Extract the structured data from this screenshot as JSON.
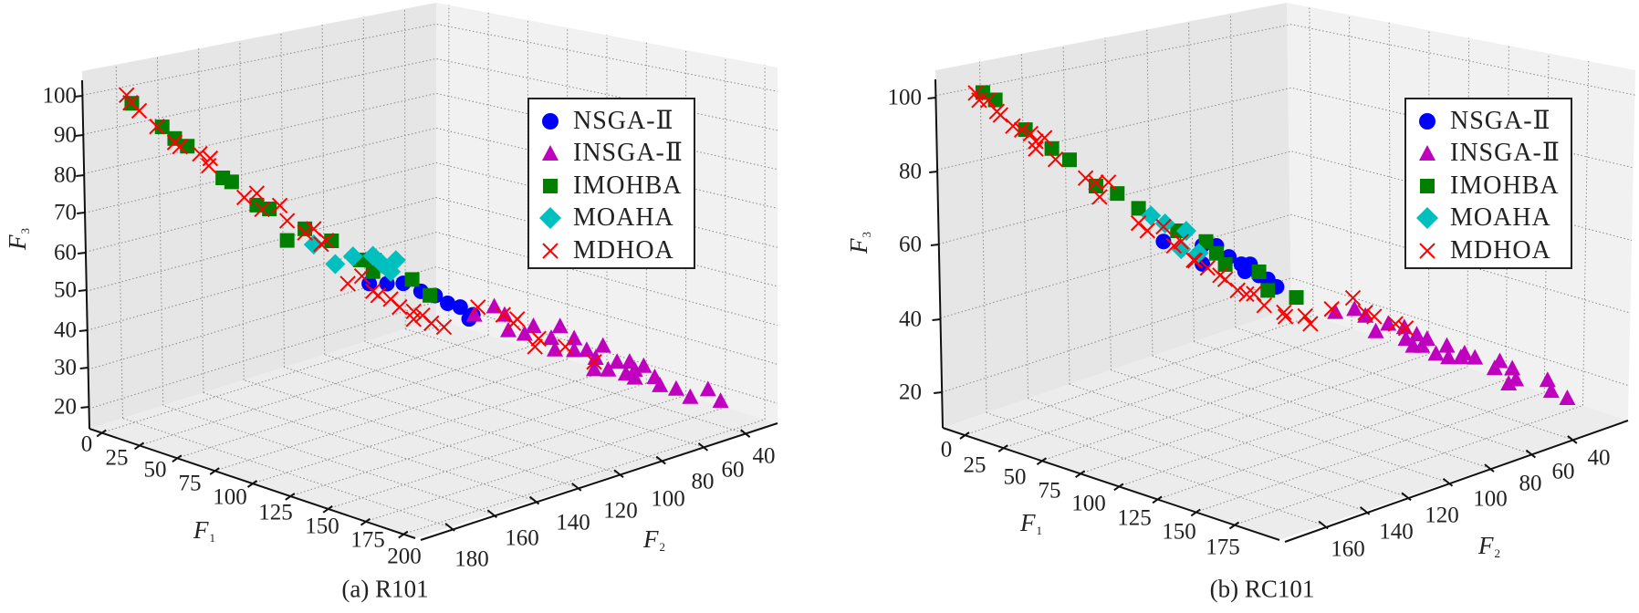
{
  "chart_data": [
    {
      "type": "scatter",
      "projection": "3d",
      "caption": "(a) R101",
      "xlabel": "F",
      "xlabel_sub": "1",
      "ylabel": "F",
      "ylabel_sub": "2",
      "zlabel": "F",
      "zlabel_sub": "3",
      "xticks": [
        "0",
        "25",
        "50",
        "75",
        "100",
        "125",
        "150",
        "175",
        "200"
      ],
      "yticks": [
        "180",
        "160",
        "140",
        "120",
        "100",
        "80",
        "60",
        "40"
      ],
      "zticks": [
        "100",
        "90",
        "80",
        "70",
        "60",
        "50",
        "40",
        "30",
        "20"
      ],
      "xlim": [
        0,
        200
      ],
      "ylim": [
        40,
        180
      ],
      "zlim": [
        20,
        100
      ],
      "grid": true,
      "legend_position": "top-right",
      "series": [
        {
          "name": "NSGA-Ⅱ",
          "marker": "circle",
          "color": "#0000ff",
          "points": [
            [
              84,
              121,
              52
            ],
            [
              90,
              117,
              52
            ],
            [
              95,
              113,
              52
            ],
            [
              101,
              109,
              50
            ],
            [
              106,
              106,
              49
            ],
            [
              110,
              103,
              47
            ],
            [
              114,
              100,
              46
            ],
            [
              118,
              97,
              44
            ],
            [
              117,
              98,
              43
            ]
          ]
        },
        {
          "name": "INSGA-Ⅱ",
          "marker": "triangle",
          "color": "#bf00bf",
          "points": [
            [
              119,
              97,
              44
            ],
            [
              125,
              92,
              46
            ],
            [
              129,
              90,
              44
            ],
            [
              130,
              89,
              40
            ],
            [
              135,
              85,
              39
            ],
            [
              138,
              83,
              41
            ],
            [
              144,
              79,
              38
            ],
            [
              147,
              77,
              41
            ],
            [
              145,
              78,
              35
            ],
            [
              152,
              74,
              38
            ],
            [
              152,
              74,
              35
            ],
            [
              156,
              71,
              35
            ],
            [
              161,
              67,
              36
            ],
            [
              159,
              69,
              33
            ],
            [
              163,
              66,
              30
            ],
            [
              166,
              64,
              32
            ],
            [
              170,
              61,
              32
            ],
            [
              172,
              60,
              30
            ],
            [
              175,
              58,
              31
            ],
            [
              172,
              60,
              28
            ],
            [
              178,
              55,
              28
            ],
            [
              180,
              54,
              26
            ],
            [
              185,
              50,
              25
            ],
            [
              190,
              47,
              23
            ],
            [
              196,
              43,
              25
            ],
            [
              200,
              40,
              22
            ],
            [
              158,
              69,
              30
            ],
            [
              169,
              62,
              29
            ]
          ]
        },
        {
          "name": "IMOHBA",
          "marker": "square",
          "color": "#007f00",
          "points": [
            [
              6,
              176,
              98
            ],
            [
              16,
              169,
              92
            ],
            [
              20,
              166,
              89
            ],
            [
              24,
              163,
              87
            ],
            [
              36,
              155,
              79
            ],
            [
              39,
              153,
              78
            ],
            [
              47,
              147,
              72
            ],
            [
              51,
              144,
              71
            ],
            [
              57,
              140,
              63
            ],
            [
              63,
              136,
              66
            ],
            [
              72,
              130,
              63
            ],
            [
              81,
              123,
              58
            ],
            [
              86,
              120,
              58
            ],
            [
              85,
              120,
              55
            ],
            [
              98,
              111,
              53
            ],
            [
              104,
              107,
              49
            ]
          ]
        },
        {
          "name": "MOAHA",
          "marker": "diamond",
          "color": "#00bfbf",
          "points": [
            [
              66,
              134,
              62
            ],
            [
              73,
              129,
              57
            ],
            [
              79,
              125,
              59
            ],
            [
              85,
              120,
              59
            ],
            [
              88,
              118,
              57
            ],
            [
              93,
              115,
              58
            ],
            [
              91,
              116,
              55
            ]
          ]
        },
        {
          "name": "MDHOA",
          "marker": "x",
          "color": "#ff0000",
          "points": [
            [
              4,
              177,
              100
            ],
            [
              5,
              176,
              98
            ],
            [
              8,
              174,
              96
            ],
            [
              14,
              170,
              92
            ],
            [
              20,
              166,
              88
            ],
            [
              22,
              165,
              87
            ],
            [
              28,
              160,
              85
            ],
            [
              32,
              158,
              84
            ],
            [
              31,
              158,
              82
            ],
            [
              43,
              150,
              74
            ],
            [
              47,
              147,
              75
            ],
            [
              49,
              146,
              71
            ],
            [
              55,
              142,
              72
            ],
            [
              57,
              140,
              68
            ],
            [
              63,
              136,
              65
            ],
            [
              66,
              134,
              66
            ],
            [
              68,
              132,
              62
            ],
            [
              70,
              131,
              63
            ],
            [
              77,
              126,
              52
            ],
            [
              82,
              123,
              54
            ],
            [
              85,
              120,
              50
            ],
            [
              87,
              119,
              49
            ],
            [
              91,
              116,
              48
            ],
            [
              94,
              114,
              46
            ],
            [
              99,
              111,
              45
            ],
            [
              99,
              111,
              43
            ],
            [
              102,
              109,
              44
            ],
            [
              105,
              107,
              42
            ],
            [
              109,
              104,
              41
            ],
            [
              120,
              96,
              46
            ],
            [
              128,
              90,
              44
            ],
            [
              132,
              88,
              42
            ],
            [
              140,
              82,
              38
            ],
            [
              149,
              76,
              36
            ],
            [
              158,
              69,
              32
            ],
            [
              133,
              87,
              43
            ],
            [
              139,
              83,
              36
            ]
          ]
        }
      ]
    },
    {
      "type": "scatter",
      "projection": "3d",
      "caption": "(b) RC101",
      "xlabel": "F",
      "xlabel_sub": "1",
      "ylabel": "F",
      "ylabel_sub": "2",
      "zlabel": "F",
      "zlabel_sub": "3",
      "xticks": [
        "0",
        "25",
        "50",
        "75",
        "100",
        "125",
        "150",
        "175"
      ],
      "yticks": [
        "160",
        "140",
        "120",
        "100",
        "80",
        "60",
        "40"
      ],
      "zticks": [
        "100",
        "80",
        "60",
        "40",
        "20"
      ],
      "xlim": [
        0,
        200
      ],
      "ylim": [
        40,
        180
      ],
      "zlim": [
        20,
        100
      ],
      "grid": true,
      "legend_position": "top-right",
      "series": [
        {
          "name": "NSGA-Ⅱ",
          "marker": "circle",
          "color": "#0000ff",
          "points": [
            [
              71,
              130,
              61
            ],
            [
              84,
              121,
              60
            ],
            [
              89,
              118,
              60
            ],
            [
              93,
              115,
              57
            ],
            [
              97,
              112,
              55
            ],
            [
              100,
              110,
              55
            ],
            [
              98,
              111,
              53
            ],
            [
              103,
              108,
              52
            ],
            [
              106,
              106,
              51
            ],
            [
              109,
              104,
              49
            ],
            [
              84,
              121,
              55
            ]
          ]
        },
        {
          "name": "INSGA-Ⅱ",
          "marker": "triangle",
          "color": "#bf00bf",
          "points": [
            [
              128,
              90,
              42
            ],
            [
              135,
              86,
              43
            ],
            [
              138,
              83,
              41
            ],
            [
              142,
              81,
              37
            ],
            [
              146,
              78,
              39
            ],
            [
              151,
              74,
              38
            ],
            [
              152,
              74,
              35
            ],
            [
              155,
              71,
              36
            ],
            [
              157,
              70,
              33
            ],
            [
              159,
              69,
              35
            ],
            [
              162,
              67,
              31
            ],
            [
              165,
              64,
              33
            ],
            [
              166,
              64,
              30
            ],
            [
              170,
              61,
              30
            ],
            [
              171,
              60,
              31
            ],
            [
              175,
              58,
              30
            ],
            [
              181,
              53,
              27
            ],
            [
              183,
              52,
              29
            ],
            [
              186,
              50,
              23
            ],
            [
              187,
              49,
              27
            ],
            [
              188,
              48,
              24
            ],
            [
              199,
              41,
              24
            ],
            [
              200,
              40,
              21
            ],
            [
              205,
              36,
              19
            ],
            [
              154,
              72,
              33
            ]
          ]
        },
        {
          "name": "IMOHBA",
          "marker": "square",
          "color": "#007f00",
          "points": [
            [
              11,
              172,
              101
            ],
            [
              15,
              169,
              99
            ],
            [
              25,
              162,
              91
            ],
            [
              34,
              156,
              86
            ],
            [
              40,
              152,
              83
            ],
            [
              49,
              146,
              76
            ],
            [
              56,
              141,
              74
            ],
            [
              63,
              136,
              70
            ],
            [
              76,
              127,
              64
            ],
            [
              85,
              120,
              61
            ],
            [
              89,
              118,
              58
            ],
            [
              92,
              116,
              55
            ],
            [
              103,
              108,
              53
            ],
            [
              106,
              106,
              48
            ],
            [
              115,
              99,
              46
            ]
          ]
        },
        {
          "name": "MOAHA",
          "marker": "diamond",
          "color": "#00bfbf",
          "points": [
            [
              67,
              133,
              68
            ],
            [
              72,
              130,
              66
            ],
            [
              79,
              125,
              64
            ],
            [
              77,
              126,
              59
            ],
            [
              83,
              122,
              58
            ]
          ]
        },
        {
          "name": "MDHOA",
          "marker": "x",
          "color": "#ff0000",
          "points": [
            [
              9,
              174,
              101
            ],
            [
              10,
              173,
              99
            ],
            [
              13,
              171,
              99
            ],
            [
              16,
              169,
              96
            ],
            [
              17,
              168,
              95
            ],
            [
              21,
              165,
              92
            ],
            [
              24,
              163,
              91
            ],
            [
              27,
              161,
              90
            ],
            [
              29,
              160,
              88
            ],
            [
              32,
              158,
              89
            ],
            [
              29,
              160,
              86
            ],
            [
              35,
              155,
              83
            ],
            [
              45,
              148,
              78
            ],
            [
              49,
              146,
              77
            ],
            [
              50,
              145,
              73
            ],
            [
              53,
              143,
              77
            ],
            [
              63,
              136,
              66
            ],
            [
              66,
              134,
              64
            ],
            [
              71,
              130,
              65
            ],
            [
              75,
              128,
              60
            ],
            [
              77,
              126,
              61
            ],
            [
              81,
              123,
              56
            ],
            [
              82,
              123,
              56
            ],
            [
              86,
              120,
              54
            ],
            [
              90,
              117,
              52
            ],
            [
              92,
              116,
              51
            ],
            [
              96,
              113,
              48
            ],
            [
              101,
              109,
              47
            ],
            [
              105,
              107,
              44
            ],
            [
              99,
              111,
              47
            ],
            [
              111,
              102,
              42
            ],
            [
              112,
              102,
              41
            ],
            [
              118,
              97,
              41
            ],
            [
              120,
              96,
              39
            ],
            [
              127,
              91,
              43
            ],
            [
              134,
              86,
              46
            ],
            [
              138,
              83,
              42
            ],
            [
              141,
              81,
              41
            ],
            [
              148,
              76,
              39
            ],
            [
              152,
              74,
              38
            ]
          ]
        }
      ]
    }
  ]
}
